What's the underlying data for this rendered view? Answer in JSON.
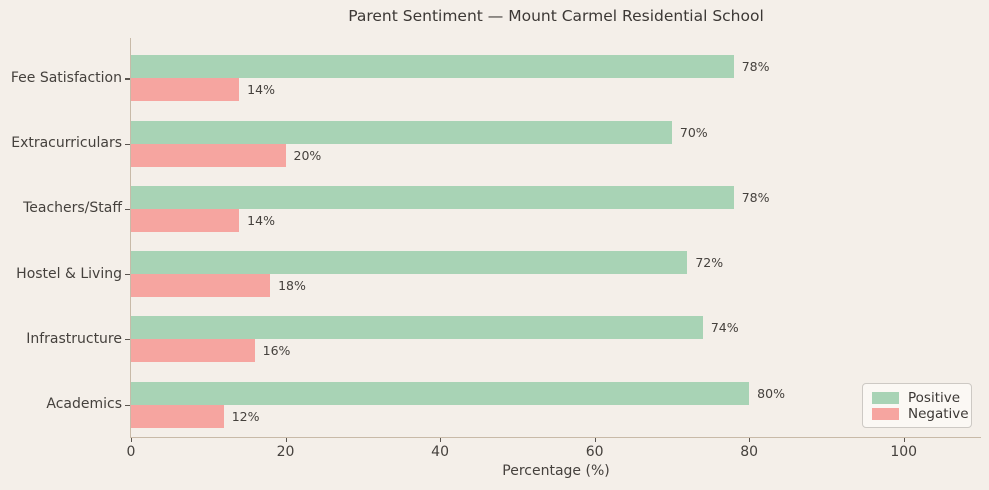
{
  "chart_data": {
    "type": "bar",
    "orientation": "horizontal",
    "title": "Parent Sentiment — Mount Carmel Residential School",
    "xlabel": "Percentage (%)",
    "categories": [
      "Fee Satisfaction",
      "Extracurriculars",
      "Teachers/Staff",
      "Hostel & Living",
      "Infrastructure",
      "Academics"
    ],
    "series": [
      {
        "name": "Positive",
        "color": "#a8d3b5",
        "values": [
          78,
          70,
          78,
          72,
          74,
          80
        ]
      },
      {
        "name": "Negative",
        "color": "#f6a5a0",
        "values": [
          14,
          20,
          14,
          18,
          16,
          12
        ]
      }
    ],
    "value_label_format": "{v}%",
    "xticks": [
      0,
      20,
      40,
      60,
      80,
      100
    ],
    "xlim": [
      0,
      110
    ],
    "grid": false,
    "legend_position": "lower right"
  },
  "colors": {
    "background": "#f4efe9",
    "spine": "#c8baa8",
    "tick_mark": "#5a554f",
    "text": "#45413d",
    "legend_background": "#fbf8f4",
    "legend_border": "#cdc9c4"
  }
}
